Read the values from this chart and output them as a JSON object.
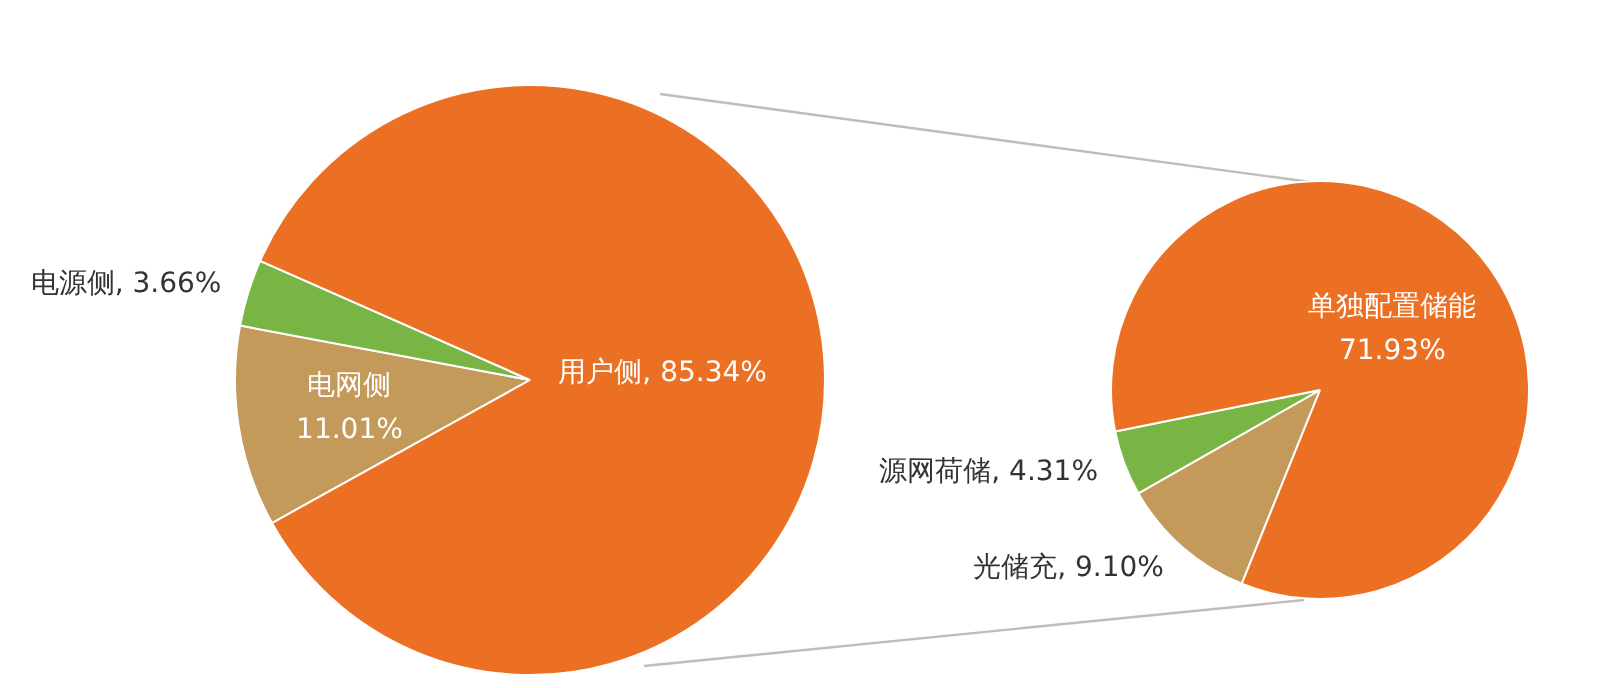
{
  "chart_data": [
    {
      "type": "pie",
      "categories": [
        "电网侧",
        "电源侧",
        "用户侧"
      ],
      "values": [
        11.01,
        3.66,
        85.34
      ],
      "value_labels": [
        "11.01%",
        "3.66%",
        "85.34%"
      ],
      "colors": [
        "#c49a5a",
        "#79b545",
        "#eb7024"
      ],
      "legend": false
    },
    {
      "type": "pie",
      "categories": [
        "光储充",
        "源网荷储",
        "单独配置储能"
      ],
      "values": [
        9.1,
        4.31,
        71.93
      ],
      "value_labels": [
        "9.10%",
        "4.31%",
        "71.93%"
      ],
      "colors": [
        "#c49a5a",
        "#79b545",
        "#eb7024"
      ],
      "legend": false
    }
  ]
}
